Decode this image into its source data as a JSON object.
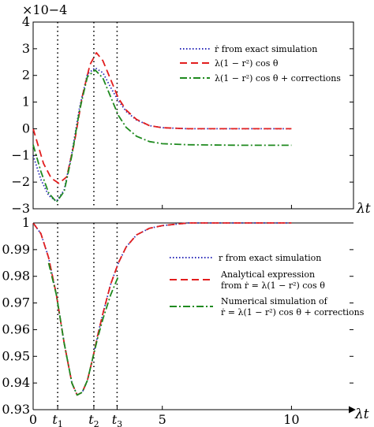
{
  "chart_data": [
    {
      "type": "line",
      "panel": "top",
      "exponent_label": "×10−4",
      "x_name": "λt",
      "xlim": [
        0,
        12.4
      ],
      "ylim": [
        -3,
        4
      ],
      "y_ticks": [
        -3,
        -2,
        -1,
        0,
        1,
        2,
        3,
        4
      ],
      "y_tick_labels": [
        "−3",
        "−2",
        "−1",
        "0",
        "1",
        "2",
        "3",
        "4"
      ],
      "vlines": [
        0.95,
        2.35,
        3.25
      ],
      "legend_position": "upper-right",
      "series": [
        {
          "name": "ṙ from exact simulation",
          "color": "#2a2ab8",
          "style": "dotted",
          "x": [
            0,
            0.3,
            0.6,
            0.9,
            1.2,
            1.5,
            1.8,
            2.1,
            2.4,
            2.7,
            3.0,
            3.3,
            3.6,
            4.0,
            4.5,
            5.0,
            6.0,
            8.0,
            10.0
          ],
          "y": [
            -1.0,
            -1.9,
            -2.5,
            -2.72,
            -2.3,
            -0.9,
            0.8,
            2.05,
            2.28,
            2.1,
            1.55,
            1.05,
            0.65,
            0.33,
            0.12,
            0.04,
            0.0,
            0.0,
            0.0
          ]
        },
        {
          "name": "λ(1 − r²) cos θ",
          "color": "#e21e1e",
          "style": "dashed",
          "x": [
            0,
            0.4,
            0.7,
            1.0,
            1.3,
            1.6,
            1.9,
            2.2,
            2.45,
            2.7,
            3.0,
            3.3,
            3.6,
            4.0,
            4.5,
            5.0,
            6.0,
            8.0,
            10.0
          ],
          "y": [
            0.0,
            -1.3,
            -1.85,
            -2.05,
            -1.8,
            -0.5,
            1.2,
            2.4,
            2.85,
            2.55,
            1.85,
            1.15,
            0.7,
            0.35,
            0.12,
            0.04,
            0.0,
            0.0,
            0.0
          ]
        },
        {
          "name": "λ(1 − r²) cos θ + corrections",
          "color": "#1f8a1f",
          "style": "dashdot",
          "x": [
            0,
            0.3,
            0.6,
            0.9,
            1.2,
            1.5,
            1.8,
            2.1,
            2.4,
            2.7,
            3.0,
            3.3,
            3.6,
            4.0,
            4.5,
            5.0,
            6.0,
            8.0,
            10.0
          ],
          "y": [
            -0.6,
            -1.6,
            -2.4,
            -2.75,
            -2.35,
            -1.0,
            0.7,
            1.95,
            2.2,
            1.9,
            1.2,
            0.5,
            0.05,
            -0.28,
            -0.48,
            -0.56,
            -0.6,
            -0.62,
            -0.62
          ]
        }
      ]
    },
    {
      "type": "line",
      "panel": "bottom",
      "x_name": "λt",
      "xlim": [
        0,
        12.4
      ],
      "ylim": [
        0.93,
        1.0
      ],
      "y_ticks": [
        0.93,
        0.94,
        0.95,
        0.96,
        0.97,
        0.98,
        0.99,
        1.0
      ],
      "y_tick_labels": [
        "0.93",
        "0.94",
        "0.95",
        "0.96",
        "0.97",
        "0.98",
        "0.99",
        "1"
      ],
      "x_ticks": [
        0,
        0.95,
        2.35,
        3.25,
        5,
        10
      ],
      "x_tick_labels": [
        "0",
        "t1",
        "t2",
        "t3",
        "5",
        "10"
      ],
      "vlines": [
        0.95,
        2.35,
        3.25
      ],
      "legend_position": "center-right",
      "series": [
        {
          "name": "r from exact simulation",
          "color": "#2a2ab8",
          "style": "dotted",
          "x": [
            0,
            0.3,
            0.6,
            0.9,
            1.2,
            1.5,
            1.7,
            1.9,
            2.1,
            2.3,
            2.5,
            2.7,
            3.0,
            3.3,
            3.6,
            4.0,
            4.5,
            5.0,
            6.0,
            8.0,
            10.0
          ],
          "y": [
            1.0,
            0.996,
            0.987,
            0.973,
            0.955,
            0.94,
            0.9355,
            0.9365,
            0.941,
            0.949,
            0.958,
            0.966,
            0.977,
            0.985,
            0.991,
            0.9955,
            0.998,
            0.999,
            1.0,
            1.0,
            1.0
          ]
        },
        {
          "name": "Analytical expression from ṙ = λ(1 − r²) cos θ",
          "color": "#e21e1e",
          "style": "dashed",
          "x": [
            0,
            0.3,
            0.6,
            0.9,
            1.2,
            1.5,
            1.7,
            1.9,
            2.1,
            2.3,
            2.5,
            2.7,
            3.0,
            3.3,
            3.6,
            4.0,
            4.5,
            5.0,
            6.0,
            8.0,
            10.0
          ],
          "y": [
            1.0,
            0.996,
            0.987,
            0.973,
            0.955,
            0.94,
            0.9355,
            0.9365,
            0.941,
            0.949,
            0.958,
            0.966,
            0.977,
            0.985,
            0.991,
            0.9955,
            0.998,
            0.999,
            1.0,
            1.0,
            1.0
          ]
        },
        {
          "name": "Numerical simulation of ṙ = λ(1 − r²) cos θ + corrections",
          "color": "#1f8a1f",
          "style": "dashdot",
          "x": [
            0.6,
            0.9,
            1.2,
            1.5,
            1.7,
            1.9,
            2.1,
            2.3,
            2.5,
            2.7,
            3.0,
            3.3
          ],
          "y": [
            0.985,
            0.973,
            0.955,
            0.94,
            0.9355,
            0.9365,
            0.941,
            0.949,
            0.957,
            0.964,
            0.973,
            0.98
          ]
        }
      ]
    }
  ]
}
